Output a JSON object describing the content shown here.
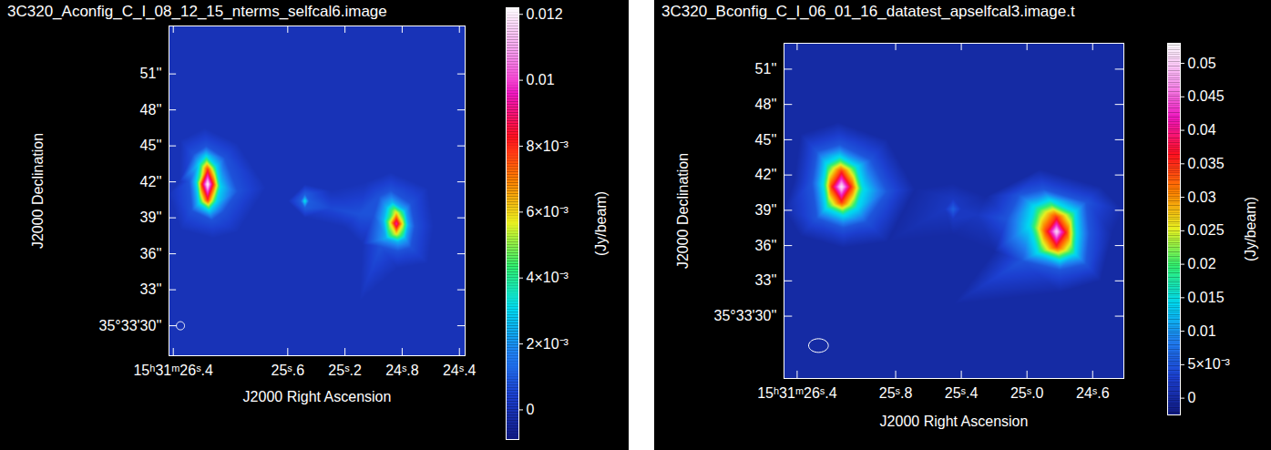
{
  "chart_data": [
    {
      "type": "heatmap",
      "title": "3C320_Aconfig_C_I_08_12_15_nterms_selfcal6.image",
      "x_label": "J2000 Right Ascension",
      "y_label": "J2000 Declination",
      "xlim": [
        26.43,
        24.36
      ],
      "xticks": [
        {
          "value": 26.4,
          "label": "15ʰ31ᵐ26ˢ.4"
        },
        {
          "value": 25.6,
          "label": "25ˢ.6"
        },
        {
          "value": 25.2,
          "label": "25ˢ.2"
        },
        {
          "value": 24.8,
          "label": "24ˢ.8"
        },
        {
          "value": 24.4,
          "label": "24ˢ.4"
        }
      ],
      "ylim": [
        27.5,
        55
      ],
      "yticks": [
        {
          "value": 51,
          "label": "51''"
        },
        {
          "value": 48,
          "label": "48''"
        },
        {
          "value": 45,
          "label": "45''"
        },
        {
          "value": 42,
          "label": "42''"
        },
        {
          "value": 39,
          "label": "39''"
        },
        {
          "value": 36,
          "label": "36''"
        },
        {
          "value": 33,
          "label": "33''"
        },
        {
          "value": 30,
          "label": "35°33'30''"
        }
      ],
      "colorbar": {
        "label": "(Jy/beam)",
        "range": [
          -0.0009,
          0.0122
        ],
        "ticks": [
          0,
          {
            "value": 0.002,
            "label": "2×10⁻³"
          },
          {
            "value": 0.004,
            "label": "4×10⁻³"
          },
          {
            "value": 0.006,
            "label": "6×10⁻³"
          },
          {
            "value": 0.008,
            "label": "8×10⁻³"
          },
          0.01,
          0.012
        ]
      },
      "beam": {
        "x": 26.35,
        "y": 30.0,
        "width": 0.057,
        "height": 0.68
      },
      "cells": [
        [
          26.43,
          55,
          0
        ],
        [
          25.4,
          55,
          0
        ],
        [
          24.36,
          55,
          0
        ],
        [
          26.43,
          27.5,
          0
        ],
        [
          25.4,
          27.5,
          0
        ],
        [
          24.36,
          27.5,
          0
        ],
        [
          26.43,
          41,
          0
        ],
        [
          24.36,
          41,
          0
        ],
        [
          25.7,
          48,
          0
        ],
        [
          25.1,
          32,
          0
        ],
        [
          25.8,
          33,
          0
        ],
        [
          24.7,
          48,
          0
        ],
        [
          26.16,
          41.8,
          0.0122
        ],
        [
          26.16,
          43.0,
          0.008
        ],
        [
          26.16,
          40.5,
          0.008
        ],
        [
          26.2,
          41.8,
          0.008
        ],
        [
          26.12,
          41.8,
          0.008
        ],
        [
          26.17,
          44.2,
          0.003
        ],
        [
          26.15,
          39.6,
          0.003
        ],
        [
          26.24,
          42.0,
          0.003
        ],
        [
          26.07,
          41.6,
          0.003
        ],
        [
          26.22,
          43.5,
          0.003
        ],
        [
          26.1,
          43.3,
          0.003
        ],
        [
          26.22,
          40.2,
          0.003
        ],
        [
          26.1,
          40.3,
          0.003
        ],
        [
          26.17,
          45.0,
          0.0008
        ],
        [
          26.13,
          38.8,
          0.0008
        ],
        [
          26.29,
          42.0,
          0.0008
        ],
        [
          25.95,
          41.2,
          0.0008
        ],
        [
          26.26,
          44.3,
          0.0008
        ],
        [
          26.04,
          44.0,
          0.0008
        ],
        [
          26.27,
          39.6,
          0.0008
        ],
        [
          26.05,
          39.5,
          0.0008
        ],
        [
          26.18,
          46.5,
          0
        ],
        [
          26.12,
          37.3,
          0
        ],
        [
          26.36,
          42.0,
          0
        ],
        [
          25.75,
          41.5,
          0
        ],
        [
          26.35,
          45.5,
          0
        ],
        [
          25.95,
          45.2,
          0
        ],
        [
          26.35,
          38.0,
          0
        ],
        [
          25.95,
          37.8,
          0
        ],
        [
          25.48,
          40.4,
          0.0035
        ],
        [
          25.51,
          40.4,
          0.001
        ],
        [
          25.45,
          40.4,
          0.001
        ],
        [
          25.48,
          41.0,
          0.001
        ],
        [
          25.48,
          39.8,
          0.001
        ],
        [
          25.48,
          41.8,
          0
        ],
        [
          25.48,
          39.0,
          0
        ],
        [
          25.6,
          40.4,
          0
        ],
        [
          25.3,
          39.8,
          0.0006
        ],
        [
          25.1,
          39.3,
          0.0008
        ],
        [
          25.3,
          41.3,
          0
        ],
        [
          25.2,
          38.2,
          0
        ],
        [
          24.84,
          38.5,
          0.0095
        ],
        [
          24.84,
          39.4,
          0.006
        ],
        [
          24.84,
          37.7,
          0.006
        ],
        [
          24.88,
          38.6,
          0.006
        ],
        [
          24.8,
          38.5,
          0.006
        ],
        [
          24.87,
          40.3,
          0.0025
        ],
        [
          24.83,
          37.0,
          0.0025
        ],
        [
          24.93,
          38.8,
          0.0025
        ],
        [
          24.76,
          38.4,
          0.0025
        ],
        [
          24.91,
          39.9,
          0.0025
        ],
        [
          24.78,
          39.6,
          0.0025
        ],
        [
          24.91,
          37.3,
          0.0025
        ],
        [
          24.78,
          37.3,
          0.0025
        ],
        [
          24.88,
          41.3,
          0.0008
        ],
        [
          24.83,
          36.2,
          0.0008
        ],
        [
          25.0,
          39.2,
          0.0008
        ],
        [
          24.71,
          38.3,
          0.0008
        ],
        [
          24.96,
          40.8,
          0.0008
        ],
        [
          24.74,
          40.2,
          0.0008
        ],
        [
          24.95,
          36.6,
          0.0008
        ],
        [
          24.74,
          36.5,
          0.0008
        ],
        [
          24.88,
          42.8,
          0
        ],
        [
          24.83,
          34.8,
          0
        ],
        [
          24.58,
          38.3,
          0
        ],
        [
          25.08,
          36.8,
          0
        ],
        [
          24.62,
          41.5,
          0
        ],
        [
          24.62,
          35.2,
          0
        ],
        [
          25.05,
          42.0,
          0
        ]
      ]
    },
    {
      "type": "heatmap",
      "title": "3C320_Bconfig_C_I_06_01_16_datatest_apselfcal3.image.t",
      "x_label": "J2000 Right Ascension",
      "y_label": "J2000 Declination",
      "xlim": [
        26.48,
        24.41
      ],
      "xticks": [
        {
          "value": 26.4,
          "label": "15ʰ31ᵐ26ˢ.4"
        },
        {
          "value": 25.8,
          "label": "25ˢ.8"
        },
        {
          "value": 25.4,
          "label": "25ˢ.4"
        },
        {
          "value": 25.0,
          "label": "25ˢ.0"
        },
        {
          "value": 24.6,
          "label": "24ˢ.6"
        }
      ],
      "ylim": [
        24.7,
        53.2
      ],
      "yticks": [
        {
          "value": 51,
          "label": "51''"
        },
        {
          "value": 48,
          "label": "48''"
        },
        {
          "value": 45,
          "label": "45''"
        },
        {
          "value": 42,
          "label": "42''"
        },
        {
          "value": 39,
          "label": "39''"
        },
        {
          "value": 36,
          "label": "36''"
        },
        {
          "value": 33,
          "label": "33''"
        },
        {
          "value": 30,
          "label": "35°33'30''"
        }
      ],
      "colorbar": {
        "label": "(Jy/beam)",
        "range": [
          -0.0025,
          0.053
        ],
        "ticks": [
          0,
          {
            "value": 0.005,
            "label": "5×10⁻³"
          },
          0.01,
          0.015,
          0.02,
          0.025,
          0.03,
          0.035,
          0.04,
          0.045,
          0.05
        ]
      },
      "beam": {
        "x": 26.27,
        "y": 27.5,
        "width": 0.12,
        "height": 1.16
      },
      "cells": [
        [
          26.48,
          53.2,
          0
        ],
        [
          25.45,
          53.2,
          0
        ],
        [
          24.41,
          53.2,
          0
        ],
        [
          26.48,
          24.7,
          0
        ],
        [
          25.45,
          24.7,
          0
        ],
        [
          24.41,
          24.7,
          0
        ],
        [
          26.48,
          39,
          0
        ],
        [
          24.41,
          39,
          0
        ],
        [
          25.45,
          47,
          0
        ],
        [
          25.45,
          31,
          0
        ],
        [
          26.13,
          41.0,
          0.052
        ],
        [
          26.13,
          42.3,
          0.035
        ],
        [
          26.13,
          39.7,
          0.035
        ],
        [
          26.19,
          41.0,
          0.035
        ],
        [
          26.07,
          41.0,
          0.035
        ],
        [
          26.14,
          43.5,
          0.015
        ],
        [
          26.12,
          38.6,
          0.015
        ],
        [
          26.24,
          41.2,
          0.015
        ],
        [
          26.0,
          40.8,
          0.015
        ],
        [
          26.22,
          42.9,
          0.015
        ],
        [
          26.04,
          42.7,
          0.015
        ],
        [
          26.22,
          39.2,
          0.015
        ],
        [
          26.04,
          39.2,
          0.015
        ],
        [
          26.14,
          44.6,
          0.005
        ],
        [
          26.12,
          37.5,
          0.005
        ],
        [
          26.31,
          41.3,
          0.005
        ],
        [
          25.85,
          40.6,
          0.005
        ],
        [
          26.28,
          44.0,
          0.005
        ],
        [
          25.95,
          43.3,
          0.005
        ],
        [
          26.28,
          38.3,
          0.005
        ],
        [
          25.98,
          38.0,
          0.005
        ],
        [
          26.15,
          46.5,
          0
        ],
        [
          26.12,
          35.8,
          0
        ],
        [
          26.42,
          41.5,
          0
        ],
        [
          25.68,
          40.8,
          0
        ],
        [
          26.38,
          45.5,
          0
        ],
        [
          25.85,
          45.0,
          0
        ],
        [
          26.38,
          36.8,
          0
        ],
        [
          25.85,
          36.3,
          0
        ],
        [
          25.45,
          39.1,
          0.006
        ],
        [
          25.5,
          39.1,
          0.002
        ],
        [
          25.4,
          39.1,
          0.002
        ],
        [
          25.45,
          40.0,
          0.002
        ],
        [
          25.45,
          38.2,
          0.002
        ],
        [
          25.45,
          41.3,
          0
        ],
        [
          25.45,
          36.9,
          0
        ],
        [
          25.3,
          38.6,
          0.002
        ],
        [
          24.82,
          37.2,
          0.051
        ],
        [
          24.82,
          38.4,
          0.035
        ],
        [
          24.82,
          35.9,
          0.035
        ],
        [
          24.88,
          37.2,
          0.035
        ],
        [
          24.76,
          37.1,
          0.035
        ],
        [
          24.86,
          39.8,
          0.015
        ],
        [
          24.8,
          34.8,
          0.015
        ],
        [
          24.98,
          37.7,
          0.015
        ],
        [
          24.7,
          37.0,
          0.015
        ],
        [
          24.95,
          39.3,
          0.015
        ],
        [
          24.71,
          38.8,
          0.015
        ],
        [
          24.93,
          35.4,
          0.015
        ],
        [
          24.71,
          35.3,
          0.015
        ],
        [
          24.9,
          40.8,
          0.005
        ],
        [
          24.8,
          33.9,
          0.005
        ],
        [
          25.12,
          38.3,
          0.005
        ],
        [
          24.62,
          37.0,
          0.005
        ],
        [
          25.05,
          40.3,
          0.005
        ],
        [
          24.64,
          39.7,
          0.005
        ],
        [
          25.03,
          34.7,
          0.005
        ],
        [
          24.64,
          34.4,
          0.005
        ],
        [
          24.92,
          42.5,
          0
        ],
        [
          24.8,
          32.0,
          0
        ],
        [
          25.25,
          40.2,
          0
        ],
        [
          24.48,
          37.0,
          0
        ],
        [
          25.2,
          35.5,
          0
        ],
        [
          24.55,
          41.0,
          0
        ],
        [
          24.55,
          33.0,
          0
        ]
      ]
    }
  ]
}
